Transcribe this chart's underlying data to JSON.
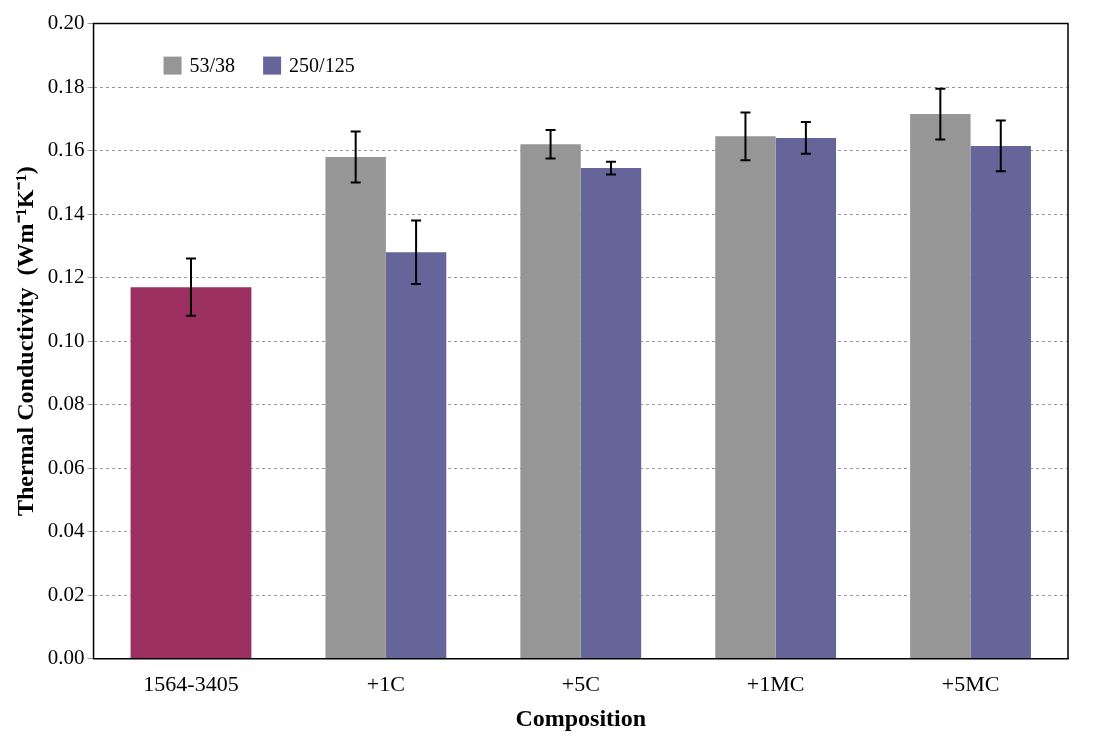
{
  "chart_data": {
    "type": "bar",
    "xlabel": "Composition",
    "ylabel": "Thermal Conductivity  (Wm⁻¹K⁻¹)",
    "categories": [
      "1564-3405",
      "+1C",
      "+5C",
      "+1MC",
      "+5MC"
    ],
    "series": [
      {
        "name": "53/38",
        "color": "#969696",
        "values": [
          null,
          0.158,
          0.162,
          0.1645,
          0.1715
        ],
        "errors": [
          null,
          0.008,
          0.0045,
          0.0075,
          0.008
        ]
      },
      {
        "name": "250/125",
        "color": "#65659a",
        "values": [
          null,
          0.128,
          0.1545,
          0.164,
          0.1615
        ],
        "errors": [
          null,
          0.01,
          0.002,
          0.005,
          0.008
        ]
      },
      {
        "color": "#9b3060",
        "values": [
          0.117,
          null,
          null,
          null,
          null
        ],
        "errors": [
          0.009,
          null,
          null,
          null,
          null
        ]
      }
    ],
    "ylim": [
      0,
      0.2
    ],
    "yticks": [
      {
        "value": 0,
        "label": "0.00"
      },
      0.02,
      0.04,
      0.06,
      0.08,
      {
        "value": 0.1,
        "label": "0.10"
      },
      0.12,
      0.14,
      0.16,
      0.18,
      {
        "value": 0.2,
        "label": "0.20"
      }
    ],
    "grid": "y",
    "legend": "top left"
  }
}
